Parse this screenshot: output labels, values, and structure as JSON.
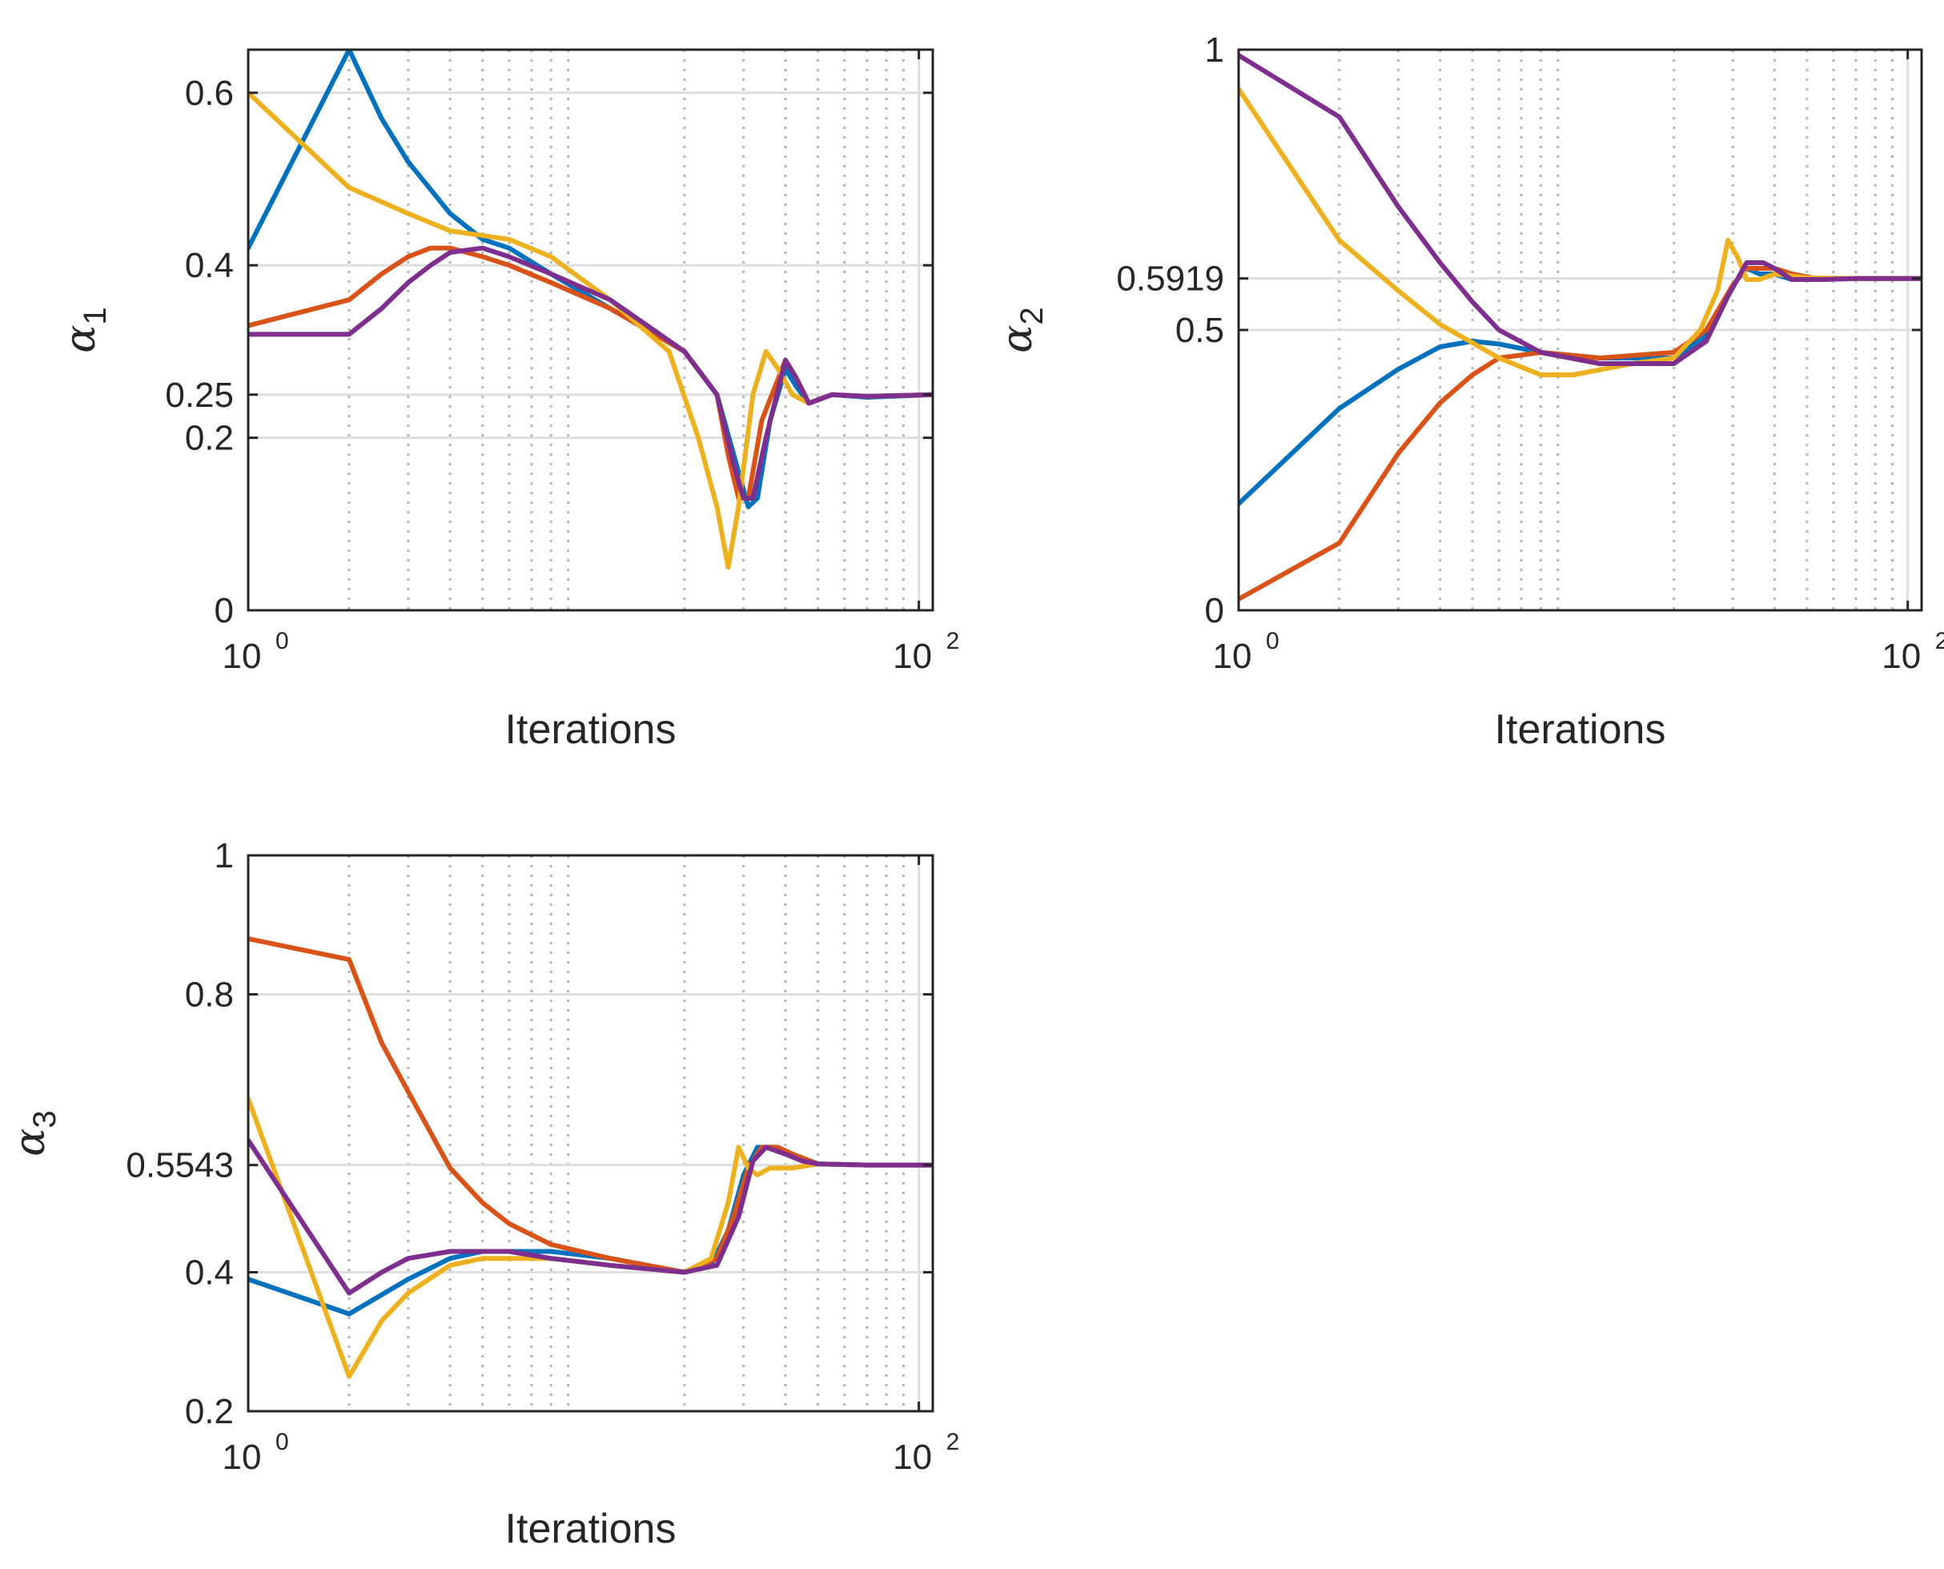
{
  "colors": {
    "series": [
      "#0072BD",
      "#D95319",
      "#EDB120",
      "#7E2F8E"
    ],
    "grid_major": "#dedede",
    "grid_minor": "#b4b4b4",
    "axes": "#262626"
  },
  "chart_data": [
    {
      "type": "line",
      "xlabel": "Iterations",
      "ylabel": "α",
      "ylabel_sub": "1",
      "xscale": "log",
      "xlim": [
        1,
        110
      ],
      "ylim": [
        0,
        0.65
      ],
      "xticks": [
        {
          "value": 1,
          "base": "10",
          "exp": "0"
        },
        {
          "value": 100,
          "base": "10",
          "exp": "2"
        }
      ],
      "yticks": [
        {
          "value": 0,
          "label": "0"
        },
        {
          "value": 0.2,
          "label": "0.2"
        },
        {
          "value": 0.25,
          "label": "0.25"
        },
        {
          "value": 0.4,
          "label": "0.4"
        },
        {
          "value": 0.6,
          "label": "0.6"
        }
      ],
      "grid": true,
      "series": [
        {
          "values": [
            [
              1,
              0.42
            ],
            [
              2,
              0.65
            ],
            [
              2.5,
              0.57
            ],
            [
              3,
              0.52
            ],
            [
              4,
              0.46
            ],
            [
              5,
              0.43
            ],
            [
              6,
              0.42
            ],
            [
              8,
              0.39
            ],
            [
              12,
              0.35
            ],
            [
              20,
              0.3
            ],
            [
              25,
              0.25
            ],
            [
              29,
              0.16
            ],
            [
              31,
              0.12
            ],
            [
              33,
              0.13
            ],
            [
              36,
              0.22
            ],
            [
              40,
              0.28
            ],
            [
              43,
              0.26
            ],
            [
              47,
              0.24
            ],
            [
              55,
              0.25
            ],
            [
              70,
              0.247
            ],
            [
              110,
              0.25
            ]
          ]
        },
        {
          "values": [
            [
              1,
              0.33
            ],
            [
              2,
              0.36
            ],
            [
              2.5,
              0.39
            ],
            [
              3,
              0.41
            ],
            [
              3.5,
              0.42
            ],
            [
              4,
              0.42
            ],
            [
              5,
              0.41
            ],
            [
              6,
              0.4
            ],
            [
              8,
              0.38
            ],
            [
              12,
              0.35
            ],
            [
              20,
              0.3
            ],
            [
              25,
              0.25
            ],
            [
              27,
              0.18
            ],
            [
              29,
              0.13
            ],
            [
              31,
              0.13
            ],
            [
              34,
              0.22
            ],
            [
              40,
              0.29
            ],
            [
              43,
              0.27
            ],
            [
              47,
              0.24
            ],
            [
              55,
              0.25
            ],
            [
              70,
              0.248
            ],
            [
              110,
              0.25
            ]
          ]
        },
        {
          "values": [
            [
              1,
              0.6
            ],
            [
              2,
              0.49
            ],
            [
              3,
              0.46
            ],
            [
              4,
              0.44
            ],
            [
              6,
              0.43
            ],
            [
              8,
              0.41
            ],
            [
              12,
              0.36
            ],
            [
              18,
              0.3
            ],
            [
              22,
              0.2
            ],
            [
              25,
              0.12
            ],
            [
              27,
              0.05
            ],
            [
              29,
              0.12
            ],
            [
              32,
              0.25
            ],
            [
              35,
              0.3
            ],
            [
              38,
              0.28
            ],
            [
              42,
              0.25
            ],
            [
              47,
              0.24
            ],
            [
              55,
              0.25
            ],
            [
              70,
              0.248
            ],
            [
              110,
              0.25
            ]
          ]
        },
        {
          "values": [
            [
              1,
              0.32
            ],
            [
              2,
              0.32
            ],
            [
              2.5,
              0.35
            ],
            [
              3,
              0.38
            ],
            [
              3.5,
              0.4
            ],
            [
              4,
              0.415
            ],
            [
              5,
              0.42
            ],
            [
              6,
              0.41
            ],
            [
              8,
              0.39
            ],
            [
              12,
              0.36
            ],
            [
              20,
              0.3
            ],
            [
              25,
              0.25
            ],
            [
              28,
              0.17
            ],
            [
              30,
              0.13
            ],
            [
              32,
              0.13
            ],
            [
              35,
              0.2
            ],
            [
              40,
              0.29
            ],
            [
              43,
              0.27
            ],
            [
              47,
              0.24
            ],
            [
              55,
              0.25
            ],
            [
              70,
              0.248
            ],
            [
              110,
              0.25
            ]
          ]
        }
      ]
    },
    {
      "type": "line",
      "xlabel": "Iterations",
      "ylabel": "α",
      "ylabel_sub": "2",
      "xscale": "log",
      "xlim": [
        1,
        110
      ],
      "ylim": [
        0,
        1
      ],
      "xticks": [
        {
          "value": 1,
          "base": "10",
          "exp": "0"
        },
        {
          "value": 100,
          "base": "10",
          "exp": "2"
        }
      ],
      "yticks": [
        {
          "value": 0,
          "label": "0"
        },
        {
          "value": 0.5,
          "label": "0.5"
        },
        {
          "value": 0.5919,
          "label": "0.5919"
        },
        {
          "value": 1,
          "label": "1"
        }
      ],
      "grid": true,
      "series": [
        {
          "values": [
            [
              1,
              0.19
            ],
            [
              2,
              0.36
            ],
            [
              3,
              0.43
            ],
            [
              4,
              0.47
            ],
            [
              5,
              0.48
            ],
            [
              6,
              0.475
            ],
            [
              8,
              0.46
            ],
            [
              12,
              0.45
            ],
            [
              20,
              0.45
            ],
            [
              25,
              0.49
            ],
            [
              30,
              0.58
            ],
            [
              33,
              0.61
            ],
            [
              36,
              0.6
            ],
            [
              40,
              0.6
            ],
            [
              45,
              0.59
            ],
            [
              55,
              0.59
            ],
            [
              70,
              0.5919
            ],
            [
              110,
              0.5919
            ]
          ]
        },
        {
          "values": [
            [
              1,
              0.02
            ],
            [
              2,
              0.12
            ],
            [
              3,
              0.28
            ],
            [
              4,
              0.37
            ],
            [
              5,
              0.42
            ],
            [
              6,
              0.45
            ],
            [
              8,
              0.46
            ],
            [
              12,
              0.45
            ],
            [
              20,
              0.46
            ],
            [
              25,
              0.5
            ],
            [
              30,
              0.58
            ],
            [
              33,
              0.61
            ],
            [
              36,
              0.61
            ],
            [
              40,
              0.61
            ],
            [
              45,
              0.6
            ],
            [
              55,
              0.59
            ],
            [
              70,
              0.5919
            ],
            [
              110,
              0.5919
            ]
          ]
        },
        {
          "values": [
            [
              1,
              0.93
            ],
            [
              2,
              0.66
            ],
            [
              3,
              0.57
            ],
            [
              4,
              0.51
            ],
            [
              6,
              0.45
            ],
            [
              8,
              0.42
            ],
            [
              10,
              0.42
            ],
            [
              15,
              0.44
            ],
            [
              20,
              0.45
            ],
            [
              24,
              0.5
            ],
            [
              27,
              0.57
            ],
            [
              29,
              0.66
            ],
            [
              31,
              0.63
            ],
            [
              33,
              0.59
            ],
            [
              36,
              0.59
            ],
            [
              40,
              0.6
            ],
            [
              50,
              0.593
            ],
            [
              70,
              0.5919
            ],
            [
              110,
              0.5919
            ]
          ]
        },
        {
          "values": [
            [
              1,
              0.99
            ],
            [
              2,
              0.88
            ],
            [
              3,
              0.72
            ],
            [
              4,
              0.62
            ],
            [
              5,
              0.55
            ],
            [
              6,
              0.5
            ],
            [
              8,
              0.46
            ],
            [
              12,
              0.44
            ],
            [
              20,
              0.44
            ],
            [
              25,
              0.48
            ],
            [
              29,
              0.56
            ],
            [
              33,
              0.62
            ],
            [
              37,
              0.62
            ],
            [
              40,
              0.61
            ],
            [
              45,
              0.59
            ],
            [
              55,
              0.59
            ],
            [
              70,
              0.5919
            ],
            [
              110,
              0.5919
            ]
          ]
        }
      ]
    },
    {
      "type": "line",
      "xlabel": "Iterations",
      "ylabel": "α",
      "ylabel_sub": "3",
      "xscale": "log",
      "xlim": [
        1,
        110
      ],
      "ylim": [
        0.2,
        1
      ],
      "xticks": [
        {
          "value": 1,
          "base": "10",
          "exp": "0"
        },
        {
          "value": 100,
          "base": "10",
          "exp": "2"
        }
      ],
      "yticks": [
        {
          "value": 0.2,
          "label": "0.2"
        },
        {
          "value": 0.4,
          "label": "0.4"
        },
        {
          "value": 0.5543,
          "label": "0.5543"
        },
        {
          "value": 0.8,
          "label": "0.8"
        },
        {
          "value": 1,
          "label": "1"
        }
      ],
      "grid": true,
      "series": [
        {
          "values": [
            [
              1,
              0.39
            ],
            [
              2,
              0.34
            ],
            [
              3,
              0.39
            ],
            [
              4,
              0.42
            ],
            [
              5,
              0.43
            ],
            [
              6,
              0.43
            ],
            [
              8,
              0.43
            ],
            [
              12,
              0.42
            ],
            [
              20,
              0.4
            ],
            [
              24,
              0.41
            ],
            [
              27,
              0.46
            ],
            [
              30,
              0.54
            ],
            [
              33,
              0.58
            ],
            [
              37,
              0.58
            ],
            [
              42,
              0.57
            ],
            [
              50,
              0.556
            ],
            [
              70,
              0.5543
            ],
            [
              110,
              0.5543
            ]
          ]
        },
        {
          "values": [
            [
              1,
              0.88
            ],
            [
              2,
              0.85
            ],
            [
              2.5,
              0.73
            ],
            [
              3,
              0.66
            ],
            [
              4,
              0.55
            ],
            [
              5,
              0.5
            ],
            [
              6,
              0.47
            ],
            [
              8,
              0.44
            ],
            [
              12,
              0.42
            ],
            [
              20,
              0.4
            ],
            [
              25,
              0.42
            ],
            [
              28,
              0.48
            ],
            [
              31,
              0.55
            ],
            [
              34,
              0.58
            ],
            [
              38,
              0.58
            ],
            [
              42,
              0.57
            ],
            [
              50,
              0.556
            ],
            [
              70,
              0.5543
            ],
            [
              110,
              0.5543
            ]
          ]
        },
        {
          "values": [
            [
              1,
              0.65
            ],
            [
              2,
              0.25
            ],
            [
              2.5,
              0.33
            ],
            [
              3,
              0.37
            ],
            [
              4,
              0.41
            ],
            [
              5,
              0.42
            ],
            [
              6,
              0.42
            ],
            [
              8,
              0.42
            ],
            [
              12,
              0.41
            ],
            [
              20,
              0.4
            ],
            [
              24,
              0.42
            ],
            [
              27,
              0.5
            ],
            [
              29,
              0.58
            ],
            [
              31,
              0.55
            ],
            [
              33,
              0.54
            ],
            [
              36,
              0.55
            ],
            [
              42,
              0.55
            ],
            [
              50,
              0.556
            ],
            [
              70,
              0.5543
            ],
            [
              110,
              0.5543
            ]
          ]
        },
        {
          "values": [
            [
              1,
              0.59
            ],
            [
              2,
              0.37
            ],
            [
              2.5,
              0.4
            ],
            [
              3,
              0.42
            ],
            [
              4,
              0.43
            ],
            [
              5,
              0.43
            ],
            [
              6,
              0.43
            ],
            [
              8,
              0.42
            ],
            [
              12,
              0.41
            ],
            [
              20,
              0.4
            ],
            [
              25,
              0.41
            ],
            [
              29,
              0.48
            ],
            [
              32,
              0.56
            ],
            [
              35,
              0.58
            ],
            [
              40,
              0.57
            ],
            [
              45,
              0.56
            ],
            [
              50,
              0.556
            ],
            [
              70,
              0.5543
            ],
            [
              110,
              0.5543
            ]
          ]
        }
      ]
    }
  ]
}
